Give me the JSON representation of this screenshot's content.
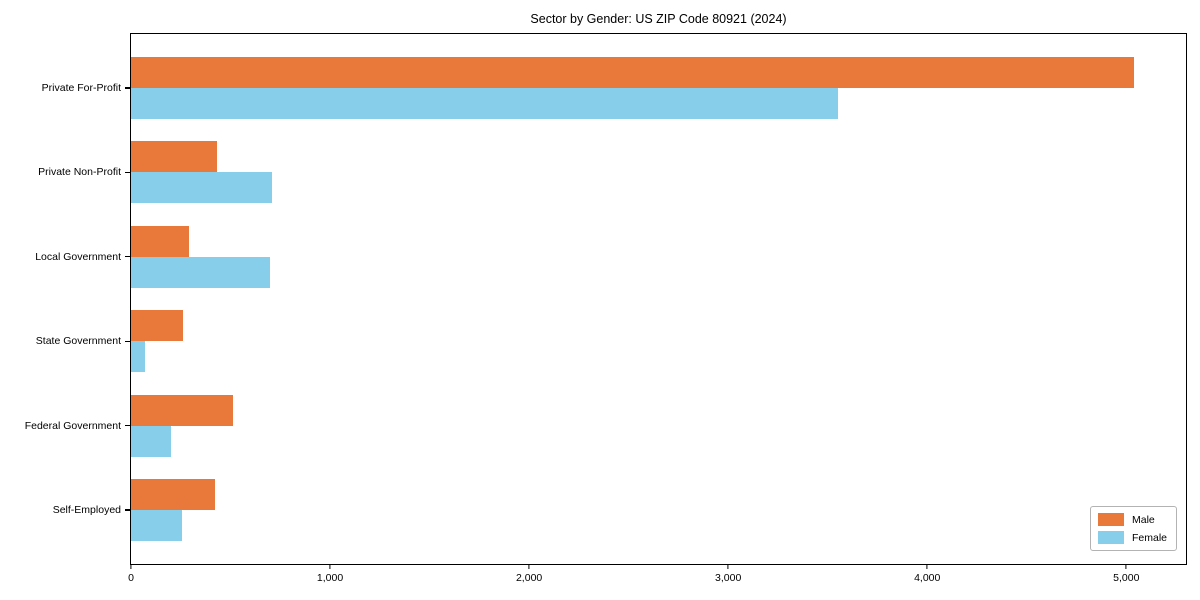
{
  "chart_data": {
    "type": "bar",
    "orientation": "horizontal",
    "title": "Sector by Gender: US ZIP Code 80921 (2024)",
    "categories": [
      "Private For-Profit",
      "Private Non-Profit",
      "Local Government",
      "State Government",
      "Federal Government",
      "Self-Employed"
    ],
    "series": [
      {
        "name": "Male",
        "color": "#e8793a",
        "values": [
          5040,
          430,
          290,
          260,
          510,
          420
        ]
      },
      {
        "name": "Female",
        "color": "#87ceeb",
        "values": [
          3550,
          710,
          700,
          70,
          200,
          255
        ]
      }
    ],
    "xlabel": "",
    "ylabel": "",
    "xlim": [
      0,
      5300
    ],
    "xticks": [
      0,
      1000,
      2000,
      3000,
      4000,
      5000
    ],
    "xtick_labels": [
      "0",
      "1,000",
      "2,000",
      "3,000",
      "4,000",
      "5,000"
    ],
    "grid": false,
    "legend_position": "lower right"
  },
  "colors": {
    "male": "#e8793a",
    "female": "#87ceeb",
    "axis": "#000000",
    "legend_border": "#b3b3b3",
    "background": "#ffffff",
    "text": "#000000"
  }
}
